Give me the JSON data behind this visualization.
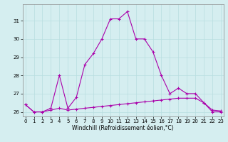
{
  "x": [
    0,
    1,
    2,
    3,
    4,
    5,
    6,
    7,
    8,
    9,
    10,
    11,
    12,
    13,
    14,
    15,
    16,
    17,
    18,
    19,
    20,
    21,
    22,
    23
  ],
  "line1": [
    26.4,
    26.0,
    26.0,
    26.1,
    26.2,
    26.1,
    26.15,
    26.2,
    26.25,
    26.3,
    26.35,
    26.4,
    26.45,
    26.5,
    26.55,
    26.6,
    26.65,
    26.7,
    26.75,
    26.75,
    26.75,
    26.5,
    26.1,
    26.05
  ],
  "line2": [
    26.4,
    26.0,
    26.0,
    26.2,
    28.0,
    26.2,
    26.8,
    28.6,
    29.2,
    30.0,
    31.1,
    31.1,
    31.5,
    30.0,
    30.0,
    29.3,
    28.0,
    27.0,
    27.3,
    27.0,
    27.0,
    26.5,
    26.0,
    26.0
  ],
  "ylim": [
    25.75,
    31.9
  ],
  "xlim": [
    -0.3,
    23.3
  ],
  "yticks": [
    26,
    27,
    28,
    29,
    30,
    31
  ],
  "xticks": [
    0,
    1,
    2,
    3,
    4,
    5,
    6,
    7,
    8,
    9,
    10,
    11,
    12,
    13,
    14,
    15,
    16,
    17,
    18,
    19,
    20,
    21,
    22,
    23
  ],
  "xlabel": "Windchill (Refroidissement éolien,°C)",
  "line_color": "#aa00aa",
  "background_color": "#d5eef0",
  "grid_color": "#b8dde0",
  "marker": "+",
  "linewidth": 0.8,
  "markersize": 3.5,
  "xlabel_fontsize": 5.5,
  "tick_fontsize": 5.0
}
